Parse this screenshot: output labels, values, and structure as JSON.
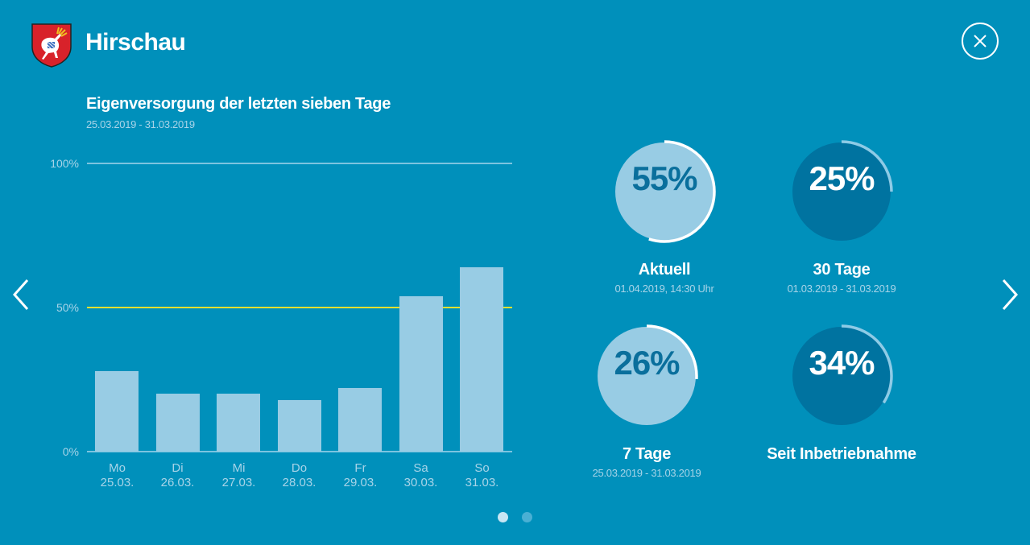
{
  "header": {
    "title": "Hirschau",
    "crest_icon": "coat-of-arms-stag-icon",
    "close_icon": "close-icon"
  },
  "colors": {
    "background": "#0090bb",
    "bar": "#98cce4",
    "reference_line": "#e8e030",
    "light_circle": "#98cce4",
    "dark_circle": "#0073a0",
    "muted_text": "#a8d4e8"
  },
  "chart": {
    "title": "Eigenversorgung der letzten sieben Tage",
    "subtitle": "25.03.2019 - 31.03.2019",
    "y_ticks": [
      "100%",
      "50%",
      "0%"
    ]
  },
  "chart_data": {
    "type": "bar",
    "title": "Eigenversorgung der letzten sieben Tage",
    "subtitle": "25.03.2019 - 31.03.2019",
    "categories": [
      "Mo 25.03.",
      "Di 26.03.",
      "Mi 27.03.",
      "Do 28.03.",
      "Fr 29.03.",
      "Sa 30.03.",
      "So 31.03."
    ],
    "days": [
      "Mo",
      "Di",
      "Mi",
      "Do",
      "Fr",
      "Sa",
      "So"
    ],
    "dates": [
      "25.03.",
      "26.03.",
      "27.03.",
      "28.03.",
      "29.03.",
      "30.03.",
      "31.03."
    ],
    "values": [
      28,
      20,
      20,
      18,
      22,
      54,
      64
    ],
    "xlabel": "",
    "ylabel": "",
    "ylim": [
      0,
      100
    ],
    "yticks": [
      "0%",
      "50%",
      "100%"
    ],
    "reference_line": {
      "value": 50,
      "color": "#e8e030"
    },
    "grid": true,
    "legend": "none"
  },
  "stats": [
    {
      "value": "55%",
      "percent": 55,
      "label": "Aktuell",
      "sub": "01.04.2019, 14:30 Uhr",
      "style": "light"
    },
    {
      "value": "25%",
      "percent": 25,
      "label": "30 Tage",
      "sub": "01.03.2019 - 31.03.2019",
      "style": "dark"
    },
    {
      "value": "26%",
      "percent": 26,
      "label": "7 Tage",
      "sub": "25.03.2019 - 31.03.2019",
      "style": "light"
    },
    {
      "value": "34%",
      "percent": 34,
      "label": "Seit Inbetriebnahme",
      "sub": "",
      "style": "dark"
    }
  ],
  "navigation": {
    "prev_icon": "chevron-left-icon",
    "next_icon": "chevron-right-icon",
    "pages": 2,
    "active_page": 1
  }
}
